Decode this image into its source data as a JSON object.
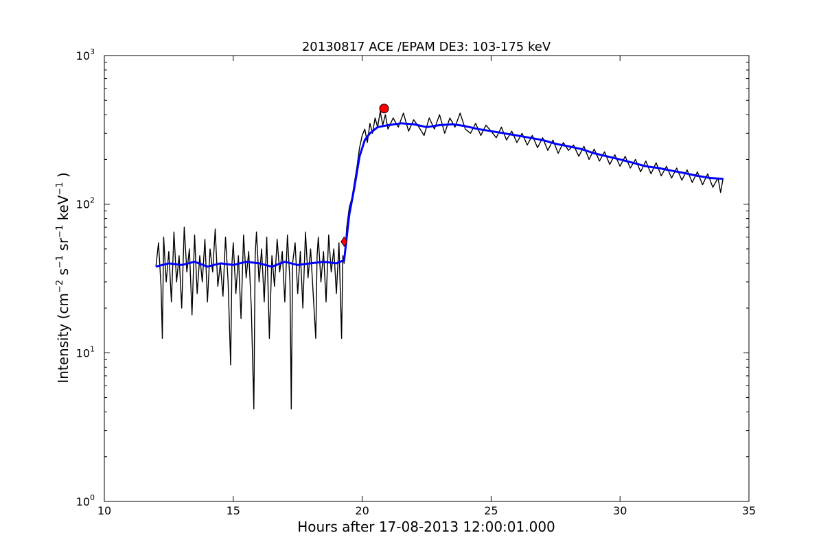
{
  "chart_data": {
    "type": "line",
    "title": "20130817 ACE /EPAM DE3: 103-175 keV",
    "xlabel": "Hours after 17-08-2013 12:00:01.000",
    "ylabel": {
      "prefix": "Intensity (cm",
      "sup1": "−2",
      "mid1": " s",
      "sup2": "−1",
      "mid2": " sr",
      "sup3": "−1",
      "mid3": " keV",
      "sup4": "−1",
      "suffix": " )"
    },
    "xlim": [
      10,
      35
    ],
    "ylim": [
      1,
      1000
    ],
    "yscale": "log",
    "grid": false,
    "x_ticks": [
      {
        "value": 10,
        "label": "10"
      },
      {
        "value": 15,
        "label": "15"
      },
      {
        "value": 20,
        "label": "20"
      },
      {
        "value": 25,
        "label": "25"
      },
      {
        "value": 30,
        "label": "30"
      },
      {
        "value": 35,
        "label": "35"
      }
    ],
    "y_ticks": [
      {
        "value": 1,
        "base": "10",
        "exp": "0"
      },
      {
        "value": 10,
        "base": "10",
        "exp": "1"
      },
      {
        "value": 100,
        "base": "10",
        "exp": "2"
      },
      {
        "value": 1000,
        "base": "10",
        "exp": "3"
      }
    ],
    "series": [
      {
        "color": "#000000",
        "style": "raw",
        "points": [
          [
            12.0,
            38
          ],
          [
            12.1,
            55
          ],
          [
            12.2,
            28
          ],
          [
            12.25,
            12.5
          ],
          [
            12.3,
            60
          ],
          [
            12.4,
            30
          ],
          [
            12.5,
            48
          ],
          [
            12.6,
            22
          ],
          [
            12.7,
            65
          ],
          [
            12.8,
            30
          ],
          [
            12.9,
            45
          ],
          [
            13.0,
            20
          ],
          [
            13.1,
            70
          ],
          [
            13.2,
            35
          ],
          [
            13.3,
            50
          ],
          [
            13.4,
            18
          ],
          [
            13.5,
            62
          ],
          [
            13.6,
            25
          ],
          [
            13.7,
            45
          ],
          [
            13.8,
            30
          ],
          [
            13.9,
            58
          ],
          [
            14.0,
            22
          ],
          [
            14.1,
            50
          ],
          [
            14.2,
            35
          ],
          [
            14.3,
            68
          ],
          [
            14.4,
            28
          ],
          [
            14.5,
            40
          ],
          [
            14.6,
            24
          ],
          [
            14.7,
            60
          ],
          [
            14.8,
            30
          ],
          [
            14.9,
            8.3
          ],
          [
            14.95,
            40
          ],
          [
            15.0,
            55
          ],
          [
            15.1,
            25
          ],
          [
            15.2,
            45
          ],
          [
            15.3,
            17
          ],
          [
            15.4,
            62
          ],
          [
            15.5,
            32
          ],
          [
            15.6,
            48
          ],
          [
            15.7,
            20
          ],
          [
            15.8,
            4.2
          ],
          [
            15.85,
            45
          ],
          [
            15.9,
            65
          ],
          [
            16.0,
            30
          ],
          [
            16.1,
            50
          ],
          [
            16.2,
            22
          ],
          [
            16.3,
            60
          ],
          [
            16.4,
            12.5
          ],
          [
            16.5,
            45
          ],
          [
            16.6,
            28
          ],
          [
            16.7,
            58
          ],
          [
            16.8,
            35
          ],
          [
            16.9,
            48
          ],
          [
            17.0,
            22
          ],
          [
            17.1,
            62
          ],
          [
            17.2,
            30
          ],
          [
            17.25,
            4.2
          ],
          [
            17.3,
            40
          ],
          [
            17.4,
            55
          ],
          [
            17.5,
            25
          ],
          [
            17.6,
            48
          ],
          [
            17.7,
            20
          ],
          [
            17.8,
            65
          ],
          [
            17.9,
            32
          ],
          [
            18.0,
            50
          ],
          [
            18.1,
            25
          ],
          [
            18.2,
            12.5
          ],
          [
            18.25,
            45
          ],
          [
            18.3,
            60
          ],
          [
            18.4,
            30
          ],
          [
            18.5,
            48
          ],
          [
            18.6,
            22
          ],
          [
            18.7,
            62
          ],
          [
            18.8,
            35
          ],
          [
            18.9,
            50
          ],
          [
            19.0,
            25
          ],
          [
            19.1,
            55
          ],
          [
            19.2,
            12.5
          ],
          [
            19.25,
            45
          ],
          [
            19.3,
            40
          ],
          [
            19.4,
            70
          ],
          [
            19.5,
            95
          ],
          [
            19.6,
            110
          ],
          [
            19.7,
            140
          ],
          [
            19.8,
            180
          ],
          [
            19.9,
            240
          ],
          [
            20.0,
            290
          ],
          [
            20.1,
            320
          ],
          [
            20.2,
            260
          ],
          [
            20.3,
            350
          ],
          [
            20.4,
            300
          ],
          [
            20.5,
            380
          ],
          [
            20.6,
            330
          ],
          [
            20.7,
            420
          ],
          [
            20.8,
            340
          ],
          [
            20.9,
            400
          ],
          [
            21.0,
            320
          ],
          [
            21.2,
            380
          ],
          [
            21.4,
            330
          ],
          [
            21.6,
            410
          ],
          [
            21.8,
            310
          ],
          [
            22.0,
            370
          ],
          [
            22.2,
            330
          ],
          [
            22.4,
            290
          ],
          [
            22.6,
            380
          ],
          [
            22.8,
            320
          ],
          [
            23.0,
            400
          ],
          [
            23.2,
            300
          ],
          [
            23.4,
            380
          ],
          [
            23.6,
            330
          ],
          [
            23.8,
            410
          ],
          [
            24.0,
            320
          ],
          [
            24.2,
            300
          ],
          [
            24.4,
            350
          ],
          [
            24.6,
            290
          ],
          [
            24.8,
            340
          ],
          [
            25.0,
            310
          ],
          [
            25.2,
            280
          ],
          [
            25.4,
            330
          ],
          [
            25.6,
            270
          ],
          [
            25.8,
            310
          ],
          [
            26.0,
            260
          ],
          [
            26.2,
            300
          ],
          [
            26.4,
            250
          ],
          [
            26.6,
            290
          ],
          [
            26.8,
            240
          ],
          [
            27.0,
            280
          ],
          [
            27.2,
            230
          ],
          [
            27.4,
            270
          ],
          [
            27.6,
            220
          ],
          [
            27.8,
            260
          ],
          [
            28.0,
            230
          ],
          [
            28.2,
            250
          ],
          [
            28.4,
            210
          ],
          [
            28.6,
            245
          ],
          [
            28.8,
            200
          ],
          [
            29.0,
            235
          ],
          [
            29.2,
            195
          ],
          [
            29.4,
            225
          ],
          [
            29.6,
            185
          ],
          [
            29.8,
            215
          ],
          [
            30.0,
            180
          ],
          [
            30.2,
            210
          ],
          [
            30.4,
            175
          ],
          [
            30.6,
            200
          ],
          [
            30.8,
            165
          ],
          [
            31.0,
            195
          ],
          [
            31.2,
            160
          ],
          [
            31.4,
            190
          ],
          [
            31.6,
            155
          ],
          [
            31.8,
            180
          ],
          [
            32.0,
            150
          ],
          [
            32.2,
            175
          ],
          [
            32.4,
            145
          ],
          [
            32.6,
            170
          ],
          [
            32.8,
            140
          ],
          [
            33.0,
            165
          ],
          [
            33.2,
            135
          ],
          [
            33.4,
            160
          ],
          [
            33.6,
            130
          ],
          [
            33.8,
            150
          ],
          [
            33.9,
            120
          ],
          [
            34.0,
            150
          ]
        ]
      },
      {
        "color": "#0000ff",
        "style": "smoothed",
        "points": [
          [
            12.0,
            38
          ],
          [
            12.5,
            40
          ],
          [
            13.0,
            39
          ],
          [
            13.5,
            41
          ],
          [
            14.0,
            38
          ],
          [
            14.5,
            40
          ],
          [
            15.0,
            39
          ],
          [
            15.5,
            41
          ],
          [
            16.0,
            40
          ],
          [
            16.5,
            38
          ],
          [
            17.0,
            41
          ],
          [
            17.5,
            39
          ],
          [
            18.0,
            40
          ],
          [
            18.5,
            41
          ],
          [
            19.0,
            40
          ],
          [
            19.3,
            42
          ],
          [
            19.5,
            85
          ],
          [
            19.7,
            130
          ],
          [
            19.9,
            210
          ],
          [
            20.1,
            270
          ],
          [
            20.3,
            300
          ],
          [
            20.6,
            330
          ],
          [
            21.0,
            340
          ],
          [
            21.5,
            350
          ],
          [
            22.0,
            345
          ],
          [
            22.5,
            330
          ],
          [
            23.0,
            340
          ],
          [
            23.5,
            345
          ],
          [
            24.0,
            335
          ],
          [
            24.5,
            320
          ],
          [
            25.0,
            310
          ],
          [
            25.5,
            300
          ],
          [
            26.0,
            290
          ],
          [
            26.5,
            280
          ],
          [
            27.0,
            270
          ],
          [
            27.5,
            255
          ],
          [
            28.0,
            245
          ],
          [
            28.5,
            235
          ],
          [
            29.0,
            220
          ],
          [
            29.5,
            210
          ],
          [
            30.0,
            200
          ],
          [
            30.5,
            190
          ],
          [
            31.0,
            180
          ],
          [
            31.5,
            175
          ],
          [
            32.0,
            168
          ],
          [
            32.5,
            162
          ],
          [
            33.0,
            155
          ],
          [
            33.5,
            150
          ],
          [
            34.0,
            148
          ]
        ]
      }
    ],
    "markers": [
      {
        "x": 19.3,
        "y": 56,
        "shape": "diamond",
        "color": "#ff0000"
      },
      {
        "x": 20.85,
        "y": 440,
        "shape": "circle",
        "color": "#ff0000"
      }
    ]
  }
}
